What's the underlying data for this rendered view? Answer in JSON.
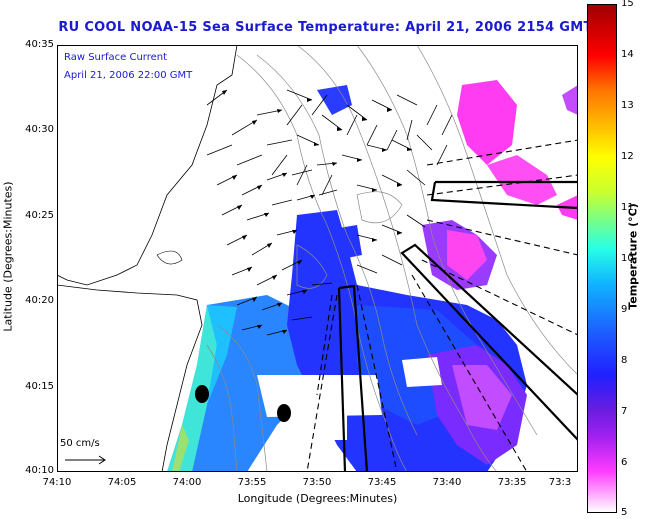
{
  "title": "RU COOL  NOAA-15  Sea Surface Temperature:  April 21, 2006 2154 GMT",
  "overlay": {
    "line1": "Raw Surface Current",
    "line2": "April 21, 2006 22:00 GMT",
    "scale_label": "50 cm/s"
  },
  "axes": {
    "xlabel": "Longitude (Degrees:Minutes)",
    "ylabel": "Latitude (Degrees:Minutes)",
    "xticks": [
      "74:10",
      "74:05",
      "74:00",
      "73:55",
      "73:50",
      "73:45",
      "73:40",
      "73:35",
      "73:3"
    ],
    "yticks": [
      "40:35",
      "40:30",
      "40:25",
      "40:20",
      "40:15",
      "40:10"
    ]
  },
  "colorbar": {
    "title": "Temperature (°C)",
    "ticks": [
      "15",
      "14",
      "13",
      "12",
      "11",
      "10",
      "9",
      "8",
      "7",
      "6",
      "5"
    ]
  },
  "colors": {
    "title": "#1a1ad0",
    "land": "#ffffff",
    "cloud": "#ffffff",
    "vectors": "#000000"
  }
}
